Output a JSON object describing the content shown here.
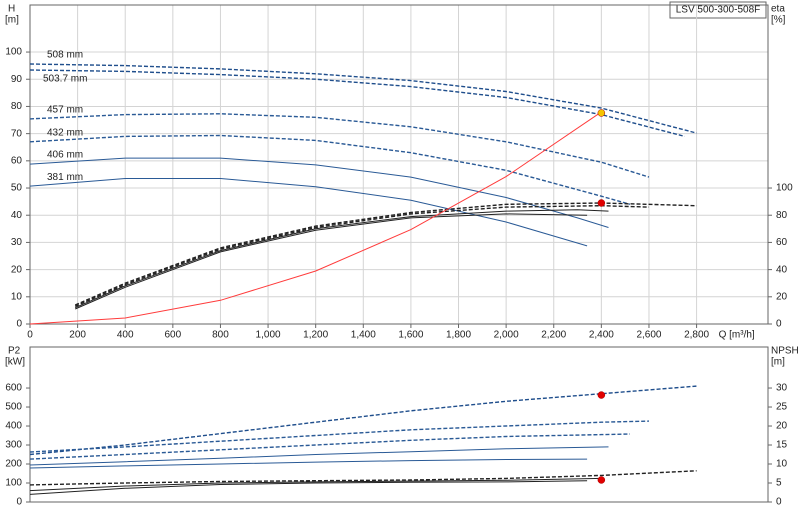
{
  "chart_data": [
    {
      "type": "line",
      "title": "LSV 500-300-508F",
      "ylabel": "H",
      "yunit": "[m]",
      "y2label": "eta",
      "y2unit": "[%]",
      "xlabel": "Q [m³/h]",
      "xlim": [
        0,
        3100
      ],
      "ylim": [
        0,
        117.3
      ],
      "y2lim": [
        0,
        234.6
      ],
      "grid": true,
      "xticks": [
        0,
        200,
        400,
        600,
        800,
        {
          "value": 1000,
          "label": "1,000"
        },
        {
          "value": 1200,
          "label": "1,200"
        },
        {
          "value": 1400,
          "label": "1,400"
        },
        {
          "value": 1600,
          "label": "1,600"
        },
        {
          "value": 1800,
          "label": "1,800"
        },
        {
          "value": 2000,
          "label": "2,000"
        },
        {
          "value": 2200,
          "label": "2,200"
        },
        {
          "value": 2400,
          "label": "2,400"
        },
        {
          "value": 2600,
          "label": "2,600"
        },
        {
          "value": 2800,
          "label": "2,800"
        }
      ],
      "yticks": [
        0,
        10,
        20,
        30,
        40,
        50,
        60,
        70,
        80,
        90,
        100
      ],
      "y2ticks": [
        0,
        20,
        40,
        60,
        80,
        100
      ],
      "series": [
        {
          "name": "508 mm",
          "color": "#1f4e8c",
          "dash": true,
          "x": [
            0,
            400,
            800,
            1200,
            1600,
            2000,
            2400,
            2800
          ],
          "values": [
            95.6,
            95,
            93.8,
            92,
            89.5,
            85.5,
            79.4,
            70.2
          ]
        },
        {
          "name": "503.7 mm",
          "color": "#1f4e8c",
          "dash": true,
          "x": [
            0,
            400,
            800,
            1200,
            1600,
            2000,
            2400,
            2750
          ],
          "values": [
            93.4,
            92.9,
            91.7,
            90,
            87.3,
            83.3,
            77,
            69
          ]
        },
        {
          "name": "457 mm",
          "color": "#2a5a96",
          "dash": true,
          "x": [
            0,
            400,
            800,
            1200,
            1600,
            2000,
            2400,
            2600
          ],
          "values": [
            75.4,
            77,
            77.3,
            76,
            72.5,
            67,
            59.5,
            54
          ]
        },
        {
          "name": "432 mm",
          "color": "#2a5a96",
          "dash": true,
          "x": [
            0,
            400,
            800,
            1200,
            1600,
            2000,
            2400,
            2520
          ],
          "values": [
            67,
            69,
            69.3,
            67.5,
            63,
            56.5,
            47,
            44
          ]
        },
        {
          "name": "406 mm",
          "color": "#2a5a96",
          "dash": false,
          "x": [
            0,
            400,
            800,
            1200,
            1600,
            2000,
            2300,
            2430
          ],
          "values": [
            58.8,
            61,
            61,
            58.5,
            54,
            46.5,
            39,
            35.5
          ]
        },
        {
          "name": "381 mm",
          "color": "#2a5a96",
          "dash": false,
          "x": [
            0,
            400,
            800,
            1200,
            1600,
            2000,
            2340
          ],
          "values": [
            50.7,
            53.5,
            53.5,
            50.5,
            45.5,
            37.5,
            28.7
          ]
        },
        {
          "color": "#222222",
          "axis": "y2",
          "dash": true,
          "x": [
            190,
            400,
            800,
            1200,
            1600,
            2000,
            2400,
            2800
          ],
          "values": [
            14,
            30,
            56,
            72,
            82,
            88,
            89,
            87
          ]
        },
        {
          "color": "#222222",
          "axis": "y2",
          "dash": true,
          "x": [
            190,
            400,
            800,
            1200,
            1600,
            2000,
            2400,
            2600
          ],
          "values": [
            13,
            29,
            55,
            71,
            81,
            86,
            87,
            86
          ]
        },
        {
          "color": "#222222",
          "axis": "y2",
          "dash": false,
          "x": [
            190,
            400,
            800,
            1200,
            1600,
            2000,
            2300,
            2430
          ],
          "values": [
            12,
            28,
            54,
            70,
            79,
            83,
            84,
            83
          ]
        },
        {
          "color": "#222222",
          "axis": "y2",
          "dash": false,
          "x": [
            190,
            400,
            800,
            1200,
            1600,
            2000,
            2340
          ],
          "values": [
            11,
            27,
            53,
            69,
            78,
            81,
            80
          ]
        },
        {
          "color": "#ff3b3b",
          "dash": false,
          "x": [
            0,
            400,
            800,
            1200,
            1600,
            2000,
            2400
          ],
          "values": [
            0,
            2.2,
            8.7,
            19.5,
            34.7,
            54.2,
            78
          ]
        }
      ],
      "points": [
        {
          "x": 2400,
          "y": 77.6,
          "color": "#f5c400"
        },
        {
          "x": 2400,
          "y": 89,
          "axis": "y2",
          "color": "#e00000"
        }
      ]
    },
    {
      "type": "line",
      "ylabel": "P2",
      "yunit": "[kW]",
      "y2label": "NPSH",
      "y2unit": "[m]",
      "xlim": [
        0,
        3100
      ],
      "ylim": [
        0,
        816
      ],
      "y2lim": [
        0,
        40.8
      ],
      "grid": false,
      "yticks": [
        0,
        100,
        200,
        300,
        400,
        500,
        600
      ],
      "y2ticks": [
        0,
        5,
        10,
        15,
        20,
        25,
        30
      ],
      "series": [
        {
          "color": "#1f4e8c",
          "dash": true,
          "x": [
            0,
            400,
            800,
            1200,
            1600,
            2000,
            2400,
            2800
          ],
          "values": [
            250,
            300,
            360,
            420,
            480,
            530,
            570,
            610
          ]
        },
        {
          "color": "#2a5a96",
          "dash": true,
          "x": [
            0,
            400,
            800,
            1200,
            1600,
            2000,
            2400,
            2600
          ],
          "values": [
            263,
            290,
            320,
            350,
            380,
            400,
            420,
            426
          ]
        },
        {
          "color": "#2a5a96",
          "dash": true,
          "x": [
            0,
            400,
            800,
            1200,
            1600,
            2000,
            2400,
            2520
          ],
          "values": [
            226,
            250,
            275,
            300,
            325,
            345,
            355,
            358
          ]
        },
        {
          "color": "#2a5a96",
          "dash": false,
          "x": [
            0,
            400,
            800,
            1200,
            1600,
            2000,
            2430
          ],
          "values": [
            195,
            212,
            230,
            250,
            265,
            280,
            290
          ]
        },
        {
          "color": "#2a5a96",
          "dash": false,
          "x": [
            0,
            400,
            800,
            1200,
            1600,
            2000,
            2340
          ],
          "values": [
            179,
            190,
            200,
            210,
            218,
            224,
            226
          ]
        },
        {
          "color": "#222222",
          "axis": "y2",
          "dash": true,
          "x": [
            0,
            400,
            800,
            1200,
            1600,
            2000,
            2400,
            2800
          ],
          "values": [
            4.5,
            5,
            5.4,
            5.6,
            5.8,
            6.2,
            7,
            8.2
          ]
        },
        {
          "color": "#222222",
          "axis": "y2",
          "dash": false,
          "x": [
            0,
            400,
            800,
            1200,
            1600,
            2000,
            2400
          ],
          "values": [
            3,
            4.2,
            5,
            5.3,
            5.5,
            5.7,
            6.2
          ]
        },
        {
          "color": "#222222",
          "axis": "y2",
          "dash": false,
          "x": [
            0,
            400,
            800,
            1200,
            1600,
            2000,
            2340
          ],
          "values": [
            2,
            3.6,
            4.6,
            5,
            5.2,
            5.3,
            5.6
          ]
        }
      ],
      "points": [
        {
          "x": 2400,
          "y": 563,
          "color": "#e00000"
        },
        {
          "x": 2400,
          "y": 5.8,
          "axis": "y2",
          "color": "#e00000"
        }
      ]
    }
  ]
}
